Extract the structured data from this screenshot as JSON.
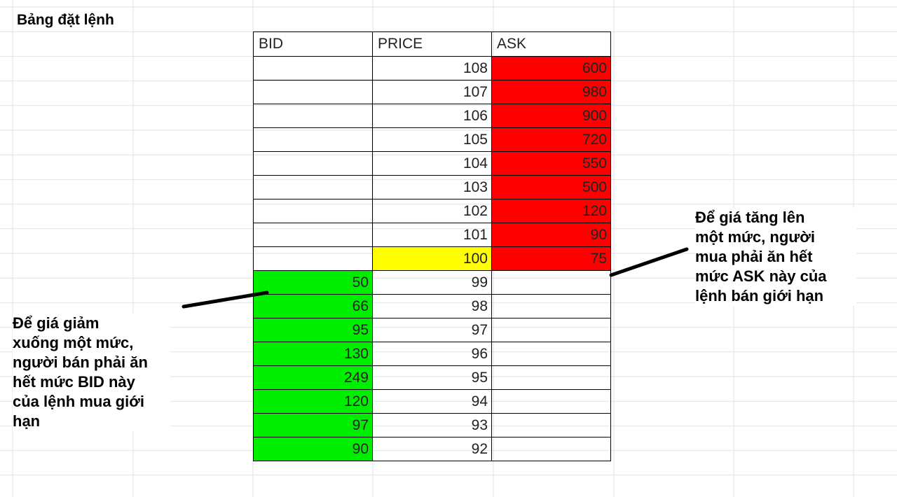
{
  "sheet": {
    "title": "Bảng đặt lệnh"
  },
  "order_book": {
    "headers": [
      "BID",
      "PRICE",
      "ASK"
    ],
    "rows": [
      {
        "bid": "",
        "price": "108",
        "ask": "600",
        "kind": "ask"
      },
      {
        "bid": "",
        "price": "107",
        "ask": "980",
        "kind": "ask"
      },
      {
        "bid": "",
        "price": "106",
        "ask": "900",
        "kind": "ask"
      },
      {
        "bid": "",
        "price": "105",
        "ask": "720",
        "kind": "ask"
      },
      {
        "bid": "",
        "price": "104",
        "ask": "550",
        "kind": "ask"
      },
      {
        "bid": "",
        "price": "103",
        "ask": "500",
        "kind": "ask"
      },
      {
        "bid": "",
        "price": "102",
        "ask": "120",
        "kind": "ask"
      },
      {
        "bid": "",
        "price": "101",
        "ask": "90",
        "kind": "ask"
      },
      {
        "bid": "",
        "price": "100",
        "ask": "75",
        "kind": "last"
      },
      {
        "bid": "50",
        "price": "99",
        "ask": "",
        "kind": "bid"
      },
      {
        "bid": "66",
        "price": "98",
        "ask": "",
        "kind": "bid"
      },
      {
        "bid": "95",
        "price": "97",
        "ask": "",
        "kind": "bid"
      },
      {
        "bid": "130",
        "price": "96",
        "ask": "",
        "kind": "bid"
      },
      {
        "bid": "249",
        "price": "95",
        "ask": "",
        "kind": "bid"
      },
      {
        "bid": "120",
        "price": "94",
        "ask": "",
        "kind": "bid"
      },
      {
        "bid": "97",
        "price": "93",
        "ask": "",
        "kind": "bid"
      },
      {
        "bid": "90",
        "price": "92",
        "ask": "",
        "kind": "bid"
      }
    ]
  },
  "annotations": {
    "left_lines": [
      "Để giá giảm",
      "xuống một mức,",
      "người bán phải ăn",
      "hết mức BID này",
      "của lệnh mua giới",
      "hạn"
    ],
    "right_lines": [
      "Để giá tăng lên",
      "một mức, người",
      "mua phải ăn hết",
      "mức ASK này của",
      "lệnh bán giới hạn"
    ]
  },
  "colors": {
    "ask_fill": "#ff0000",
    "bid_fill": "#00ee00",
    "last_price_fill": "#ffff00",
    "gridline": "#e2e2e2"
  }
}
